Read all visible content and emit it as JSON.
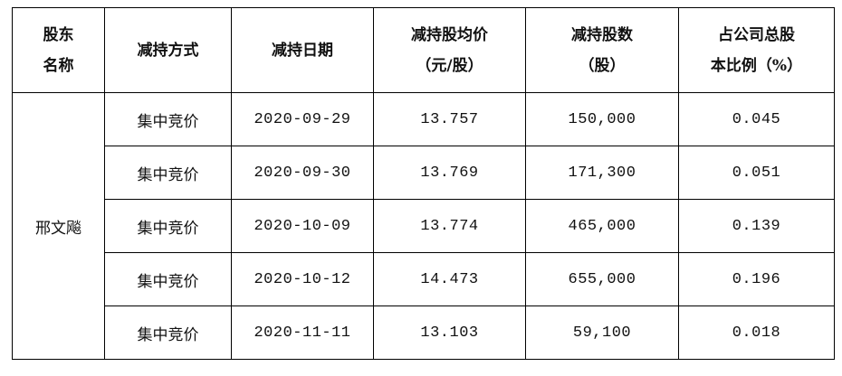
{
  "table": {
    "header": [
      [
        "股东",
        "名称"
      ],
      [
        "减持方式"
      ],
      [
        "减持日期"
      ],
      [
        "减持股均价",
        "（元/股）"
      ],
      [
        "减持股数",
        "（股）"
      ],
      [
        "占公司总股",
        "本比例（%）"
      ]
    ],
    "holder": "邢文飚",
    "rows": [
      [
        "集中竞价",
        "2020-09-29",
        "13.757",
        "150,000",
        "0.045"
      ],
      [
        "集中竞价",
        "2020-09-30",
        "13.769",
        "171,300",
        "0.051"
      ],
      [
        "集中竞价",
        "2020-10-09",
        "13.774",
        "465,000",
        "0.139"
      ],
      [
        "集中竞价",
        "2020-10-12",
        "14.473",
        "655,000",
        "0.196"
      ],
      [
        "集中竞价",
        "2020-11-11",
        "13.103",
        "59,100",
        "0.018"
      ]
    ]
  }
}
